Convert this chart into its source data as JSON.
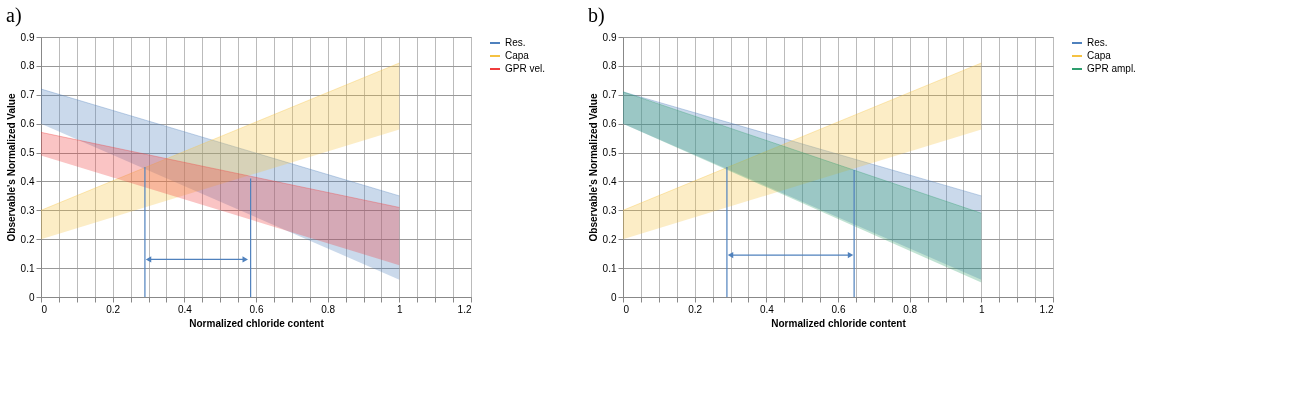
{
  "chart_data": [
    {
      "type": "line",
      "title": "a)",
      "xlabel": "Normalized chloride content",
      "ylabel": "Observable's Normalized Value",
      "legend": "right",
      "grid": true,
      "xlim": [
        0,
        1.2
      ],
      "ylim": [
        0,
        0.9
      ],
      "xticks": [
        0,
        {
          "value": 0.05,
          "label": null
        },
        {
          "value": 0.1,
          "label": null
        },
        {
          "value": 0.15,
          "label": null
        },
        0.2,
        {
          "value": 0.25,
          "label": null
        },
        {
          "value": 0.3,
          "label": null
        },
        {
          "value": 0.35,
          "label": null
        },
        0.4,
        {
          "value": 0.45,
          "label": null
        },
        {
          "value": 0.5,
          "label": null
        },
        {
          "value": 0.55,
          "label": null
        },
        0.6,
        {
          "value": 0.65,
          "label": null
        },
        {
          "value": 0.7,
          "label": null
        },
        {
          "value": 0.75,
          "label": null
        },
        0.8,
        {
          "value": 0.85,
          "label": null
        },
        {
          "value": 0.9,
          "label": null
        },
        {
          "value": 0.95,
          "label": null
        },
        1,
        {
          "value": 1.05,
          "label": null
        },
        {
          "value": 1.1,
          "label": null
        },
        {
          "value": 1.15,
          "label": null
        },
        1.2
      ],
      "yticks": [
        0,
        0.1,
        0.2,
        0.3,
        0.4,
        0.5,
        0.6,
        0.7,
        0.8,
        0.9
      ],
      "series": [
        {
          "name": "Res.",
          "color": "#4f81bd",
          "x": [
            0,
            1
          ],
          "values": [
            0.72,
            0.35
          ],
          "lower": [
            0.6,
            0.06
          ],
          "upper": [
            0.72,
            0.35
          ]
        },
        {
          "name": "Capa",
          "color": "#f5c242",
          "x": [
            0,
            1
          ],
          "values": [
            0.3,
            0.81
          ],
          "lower": [
            0.2,
            0.58
          ],
          "upper": [
            0.3,
            0.81
          ]
        },
        {
          "name": "GPR vel.",
          "color": "#f03c3c",
          "x": [
            0,
            1
          ],
          "values": [
            0.57,
            0.31
          ],
          "lower": [
            0.49,
            0.11
          ],
          "upper": [
            0.57,
            0.31
          ]
        },
        {
          "type": "line",
          "color": "#4f81bd",
          "x": [
            0.29,
            0.29
          ],
          "values": [
            0,
            0.45
          ]
        },
        {
          "type": "line",
          "color": "#4f81bd",
          "x": [
            0.585,
            0.585
          ],
          "values": [
            0,
            0.41
          ]
        },
        {
          "type": "line",
          "color": "#4f81bd",
          "x": [
            0.3,
            0.57
          ],
          "values": [
            0.13,
            0.13
          ],
          "marker": "triangle"
        }
      ]
    },
    {
      "type": "line",
      "title": "b)",
      "xlabel": "Normalized chloride content",
      "ylabel": "Observable's Normalized Value",
      "legend": "right",
      "grid": true,
      "xlim": [
        0,
        1.2
      ],
      "ylim": [
        0,
        0.9
      ],
      "xticks": [
        0,
        {
          "value": 0.05,
          "label": null
        },
        {
          "value": 0.1,
          "label": null
        },
        {
          "value": 0.15,
          "label": null
        },
        0.2,
        {
          "value": 0.25,
          "label": null
        },
        {
          "value": 0.3,
          "label": null
        },
        {
          "value": 0.35,
          "label": null
        },
        0.4,
        {
          "value": 0.45,
          "label": null
        },
        {
          "value": 0.5,
          "label": null
        },
        {
          "value": 0.55,
          "label": null
        },
        0.6,
        {
          "value": 0.65,
          "label": null
        },
        {
          "value": 0.7,
          "label": null
        },
        {
          "value": 0.75,
          "label": null
        },
        0.8,
        {
          "value": 0.85,
          "label": null
        },
        {
          "value": 0.9,
          "label": null
        },
        {
          "value": 0.95,
          "label": null
        },
        1,
        {
          "value": 1.05,
          "label": null
        },
        {
          "value": 1.1,
          "label": null
        },
        {
          "value": 1.15,
          "label": null
        },
        1.2
      ],
      "yticks": [
        0,
        0.1,
        0.2,
        0.3,
        0.4,
        0.5,
        0.6,
        0.7,
        0.8,
        0.9
      ],
      "series": [
        {
          "name": "Res.",
          "color": "#4f81bd",
          "x": [
            0,
            1
          ],
          "values": [
            0.71,
            0.35
          ],
          "lower": [
            0.6,
            0.06
          ],
          "upper": [
            0.71,
            0.35
          ]
        },
        {
          "name": "Capa",
          "color": "#f5c242",
          "x": [
            0,
            1
          ],
          "values": [
            0.3,
            0.81
          ],
          "lower": [
            0.2,
            0.58
          ],
          "upper": [
            0.3,
            0.81
          ]
        },
        {
          "name": "GPR ampl.",
          "color": "#2e9e6e",
          "x": [
            0,
            1
          ],
          "values": [
            0.71,
            0.29
          ],
          "lower": [
            0.6,
            0.05
          ],
          "upper": [
            0.71,
            0.29
          ]
        },
        {
          "type": "line",
          "color": "#4f81bd",
          "x": [
            0.29,
            0.29
          ],
          "values": [
            0,
            0.45
          ]
        },
        {
          "type": "line",
          "color": "#4f81bd",
          "x": [
            0.645,
            0.645
          ],
          "values": [
            0,
            0.44
          ]
        },
        {
          "type": "line",
          "color": "#4f81bd",
          "x": [
            0.3,
            0.635
          ],
          "values": [
            0.145,
            0.145
          ],
          "marker": "triangle"
        }
      ]
    }
  ]
}
